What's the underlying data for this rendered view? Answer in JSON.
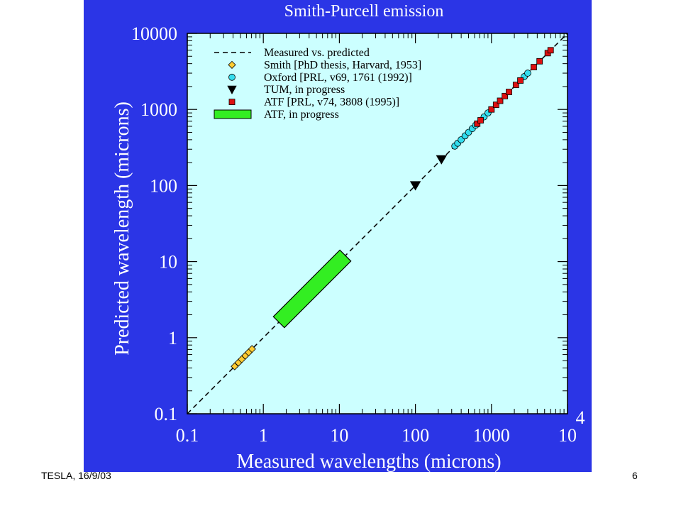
{
  "footer": {
    "left": "TESLA, 16/9/03",
    "right": "6"
  },
  "colors": {
    "panel": "#2b35e6",
    "plot_bg": "#ccffff",
    "smith": "#ffcc33",
    "oxford": "#33ddee",
    "tum": "#000000",
    "atf": "#dd1111",
    "atf_progress": "#33ee22"
  },
  "chart_data": {
    "type": "scatter",
    "title": "Smith-Purcell emission",
    "xlabel": "Measured wavelengths (microns)",
    "ylabel": "Predicted wavelength (microns)",
    "x_scale": "log",
    "y_scale": "log",
    "xlim": [
      0.1,
      10000
    ],
    "ylim": [
      0.1,
      10000
    ],
    "x_ticks": [
      "0.1",
      "1",
      "10",
      "100",
      "1000",
      "10"
    ],
    "x_tick_exponent": "4",
    "y_ticks": [
      "0.1",
      "1",
      "10",
      "100",
      "1000",
      "10000"
    ],
    "grid": false,
    "legend_position": "top-left",
    "series": [
      {
        "name": "Measured vs. predicted",
        "kind": "dashed-line",
        "x": [
          0.1,
          10000
        ],
        "y": [
          0.1,
          10000
        ]
      },
      {
        "name": "Smith [PhD thesis, Harvard, 1953]",
        "kind": "diamond",
        "x": [
          0.42,
          0.47,
          0.52,
          0.58,
          0.64,
          0.71
        ],
        "y": [
          0.42,
          0.47,
          0.52,
          0.58,
          0.64,
          0.71
        ]
      },
      {
        "name": "Oxford [PRL, v69, 1761 (1992)]",
        "kind": "circle",
        "x": [
          330,
          360,
          400,
          450,
          500,
          560,
          620,
          800,
          900,
          2700,
          3000
        ],
        "y": [
          330,
          360,
          400,
          450,
          500,
          560,
          620,
          800,
          900,
          2700,
          3000
        ]
      },
      {
        "name": "TUM, in progress",
        "kind": "triangle-down",
        "x": [
          100,
          220
        ],
        "y": [
          100,
          220
        ]
      },
      {
        "name": "ATF [PRL, v74, 3808 (1995)]",
        "kind": "square",
        "x": [
          650,
          720,
          1000,
          1150,
          1300,
          1500,
          1700,
          2100,
          2400,
          3600,
          4300,
          5500,
          6000
        ],
        "y": [
          650,
          720,
          1000,
          1150,
          1300,
          1500,
          1700,
          2100,
          2400,
          3600,
          4300,
          5500,
          6000
        ]
      },
      {
        "name": "ATF, in progress",
        "kind": "band",
        "x": [
          1.6,
          12
        ],
        "y": [
          1.6,
          12
        ]
      }
    ]
  }
}
